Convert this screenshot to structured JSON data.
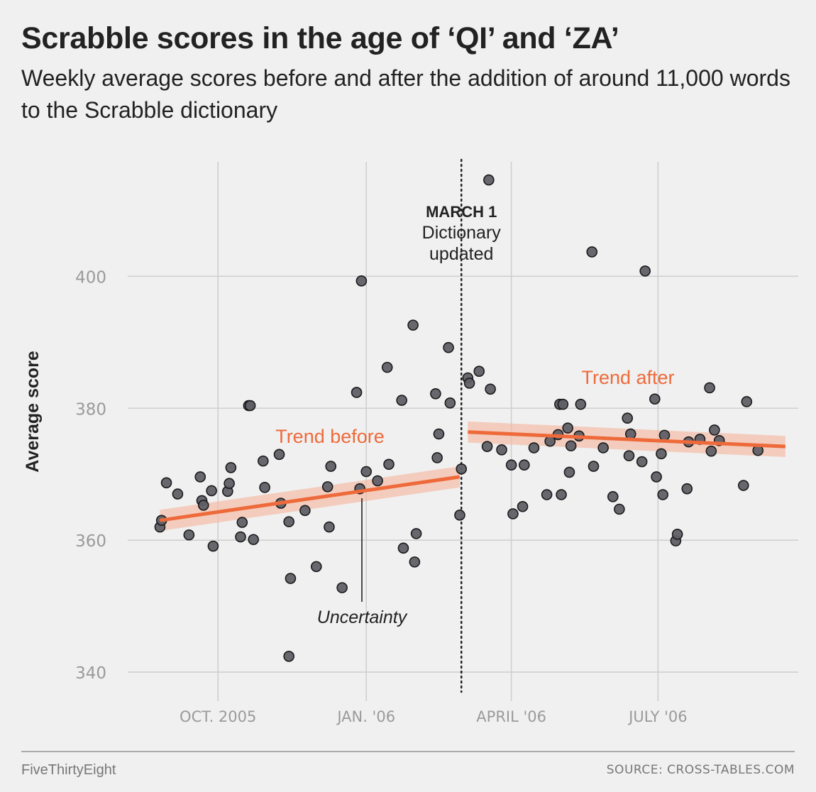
{
  "header": {
    "title": "Scrabble scores in the age of ‘QI’ and ‘ZA’",
    "subtitle": "Weekly average scores before and after the addition of around 11,000 words to the Scrabble dictionary"
  },
  "footer": {
    "brand": "FiveThirtyEight",
    "source": "SOURCE: CROSS-TABLES.COM"
  },
  "colors": {
    "background": "#f0f0f0",
    "grid": "#cfcfcf",
    "point_fill": "#5f5f66",
    "point_stroke": "#1a1a1a",
    "trend": "#ee6a3a",
    "band": "#f4b9a2"
  },
  "chart_data": {
    "type": "scatter",
    "ylabel": "Average score",
    "xlabel": "",
    "ylim": [
      337,
      418
    ],
    "xlim": [
      "2005-08-06",
      "2006-09-26"
    ],
    "yticks": [
      340,
      360,
      380,
      400
    ],
    "xticks": [
      {
        "date": "2005-10-01",
        "label": "OCT. 2005"
      },
      {
        "date": "2006-01-01",
        "label": "JAN. '06"
      },
      {
        "date": "2006-04-01",
        "label": "APRIL '06"
      },
      {
        "date": "2006-07-01",
        "label": "JULY '06"
      }
    ],
    "grid": true,
    "event": {
      "date": "2006-03-01",
      "label_bold": "MARCH 1",
      "label_lines": [
        "Dictionary",
        "updated"
      ]
    },
    "annotations": {
      "trend_before": "Trend before",
      "trend_after": "Trend after",
      "uncertainty": "Uncertainty"
    },
    "trends": [
      {
        "name": "Trend before",
        "start": [
          "2005-08-26",
          363.0
        ],
        "end": [
          "2006-02-28",
          369.6
        ],
        "band": 1.6
      },
      {
        "name": "Trend after",
        "start": [
          "2006-03-05",
          376.4
        ],
        "end": [
          "2006-09-18",
          374.2
        ],
        "band": 1.6
      }
    ],
    "points": [
      [
        "2005-08-26",
        362.0
      ],
      [
        "2005-08-27",
        363.0
      ],
      [
        "2005-08-30",
        368.7
      ],
      [
        "2005-09-06",
        367.0
      ],
      [
        "2005-09-13",
        360.8
      ],
      [
        "2005-09-20",
        369.6
      ],
      [
        "2005-09-21",
        366.0
      ],
      [
        "2005-09-22",
        365.3
      ],
      [
        "2005-09-27",
        367.5
      ],
      [
        "2005-09-28",
        359.1
      ],
      [
        "2005-10-07",
        367.4
      ],
      [
        "2005-10-08",
        368.6
      ],
      [
        "2005-10-09",
        371.0
      ],
      [
        "2005-10-15",
        360.5
      ],
      [
        "2005-10-16",
        362.7
      ],
      [
        "2005-10-20",
        380.4
      ],
      [
        "2005-10-21",
        380.4
      ],
      [
        "2005-10-23",
        360.1
      ],
      [
        "2005-10-29",
        372.0
      ],
      [
        "2005-10-30",
        368.0
      ],
      [
        "2005-11-08",
        373.0
      ],
      [
        "2005-11-09",
        365.6
      ],
      [
        "2005-11-14",
        362.8
      ],
      [
        "2005-11-15",
        354.2
      ],
      [
        "2005-11-14",
        342.4
      ],
      [
        "2005-11-24",
        364.5
      ],
      [
        "2005-12-01",
        356.0
      ],
      [
        "2005-12-08",
        368.1
      ],
      [
        "2005-12-09",
        362.0
      ],
      [
        "2005-12-10",
        371.2
      ],
      [
        "2005-12-17",
        352.8
      ],
      [
        "2005-12-28",
        367.8
      ],
      [
        "2005-12-26",
        382.4
      ],
      [
        "2006-01-01",
        370.4
      ],
      [
        "2005-12-29",
        399.3
      ],
      [
        "2006-01-08",
        369.0
      ],
      [
        "2006-01-14",
        386.2
      ],
      [
        "2006-01-15",
        371.5
      ],
      [
        "2006-01-23",
        381.2
      ],
      [
        "2006-01-24",
        358.8
      ],
      [
        "2006-01-30",
        392.6
      ],
      [
        "2006-01-31",
        356.7
      ],
      [
        "2006-02-01",
        361.0
      ],
      [
        "2006-02-13",
        382.2
      ],
      [
        "2006-02-14",
        372.5
      ],
      [
        "2006-02-15",
        376.1
      ],
      [
        "2006-02-21",
        389.2
      ],
      [
        "2006-02-22",
        380.8
      ],
      [
        "2006-02-28",
        363.8
      ],
      [
        "2006-03-01",
        370.8
      ],
      [
        "2006-03-05",
        384.6
      ],
      [
        "2006-03-06",
        383.8
      ],
      [
        "2006-03-12",
        385.6
      ],
      [
        "2006-03-17",
        374.2
      ],
      [
        "2006-03-19",
        382.9
      ],
      [
        "2006-03-18",
        414.6
      ],
      [
        "2006-03-26",
        373.7
      ],
      [
        "2006-04-01",
        371.4
      ],
      [
        "2006-04-02",
        364.0
      ],
      [
        "2006-04-08",
        365.1
      ],
      [
        "2006-04-09",
        371.4
      ],
      [
        "2006-04-15",
        374.0
      ],
      [
        "2006-04-23",
        366.9
      ],
      [
        "2006-04-25",
        375.0
      ],
      [
        "2006-04-30",
        376.0
      ],
      [
        "2006-05-01",
        380.6
      ],
      [
        "2006-05-02",
        366.9
      ],
      [
        "2006-05-03",
        380.6
      ],
      [
        "2006-05-06",
        377.0
      ],
      [
        "2006-05-07",
        370.3
      ],
      [
        "2006-05-08",
        374.3
      ],
      [
        "2006-05-13",
        375.8
      ],
      [
        "2006-05-14",
        380.6
      ],
      [
        "2006-05-22",
        371.2
      ],
      [
        "2006-05-21",
        403.7
      ],
      [
        "2006-05-28",
        374.0
      ],
      [
        "2006-06-03",
        366.6
      ],
      [
        "2006-06-07",
        364.7
      ],
      [
        "2006-06-12",
        378.5
      ],
      [
        "2006-06-13",
        372.8
      ],
      [
        "2006-06-14",
        376.1
      ],
      [
        "2006-06-21",
        371.9
      ],
      [
        "2006-06-23",
        400.8
      ],
      [
        "2006-06-29",
        381.4
      ],
      [
        "2006-06-30",
        369.6
      ],
      [
        "2006-07-03",
        373.1
      ],
      [
        "2006-07-04",
        366.9
      ],
      [
        "2006-07-05",
        375.9
      ],
      [
        "2006-07-12",
        359.9
      ],
      [
        "2006-07-13",
        360.9
      ],
      [
        "2006-07-19",
        367.8
      ],
      [
        "2006-07-20",
        374.9
      ],
      [
        "2006-07-27",
        375.3
      ],
      [
        "2006-08-02",
        383.1
      ],
      [
        "2006-08-03",
        373.5
      ],
      [
        "2006-08-05",
        376.7
      ],
      [
        "2006-08-08",
        375.1
      ],
      [
        "2006-08-23",
        368.3
      ],
      [
        "2006-08-25",
        381.0
      ],
      [
        "2006-09-01",
        373.6
      ]
    ]
  }
}
